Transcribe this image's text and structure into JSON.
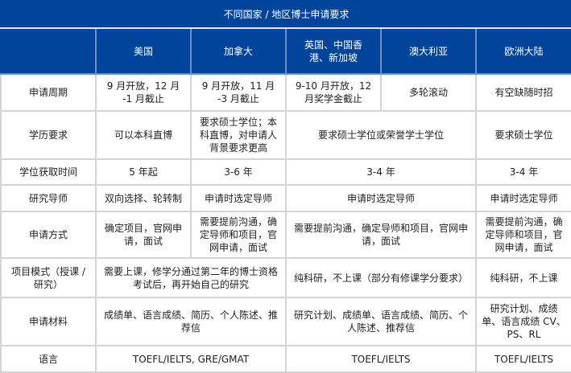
{
  "title": "不同国家 / 地区博士申请要求",
  "columns": [
    "",
    "美国",
    "加拿大",
    "英国、中国香港、新加坡",
    "澳大利亚",
    "欧洲大陆"
  ],
  "colors": {
    "header_bg": "#00449b",
    "border": "#d4d4d4"
  },
  "rows": [
    {
      "label": "申请周期",
      "cells": [
        "9 月开放，12 月 -1 月截止",
        "9 月开放，11 月 -3 月截止",
        "9-10 月开放，12 月奖学金截止",
        "多轮滚动",
        "有空缺随时招"
      ]
    },
    {
      "label": "学历要求",
      "cells": [
        "可以本科直博",
        "要求硕士学位；本科直博，对申请人背景要求更高",
        "要求硕士学位或荣誉学士学位",
        "要求硕士学位"
      ]
    },
    {
      "label": "学位获取时间",
      "cells": [
        "5 年起",
        "3-6 年",
        "3-4 年",
        "3-4 年"
      ]
    },
    {
      "label": "研究导师",
      "cells": [
        "双向选择、轮转制",
        "申请时选定导师",
        "申请时选定导师",
        "申请时选定导师"
      ]
    },
    {
      "label": "申请方式",
      "cells": [
        "确定项目，官网申请，面试",
        "需要提前沟通，确定导师和项目，官网申请，面试",
        "需要提前沟通，确定导师和项目，官网申请，面试",
        "需要提前沟通，确定导师和项目，官网申请，面试"
      ]
    },
    {
      "label": "项目模式（授课 / 研究）",
      "cells": [
        "需要上课，修学分通过第二年的博士资格考试后，再开始自己的研究",
        "纯科研，不上课（部分有修课学分要求）",
        "纯科研，不上课"
      ]
    },
    {
      "label": "申请材料",
      "cells": [
        "成绩单、语言成绩、简历、个人陈述、推荐信",
        "研究计划、成绩单、语言成绩、简历、个人陈述、推荐信",
        "研究计划、成绩单、语言成绩 CV、PS、RL"
      ]
    },
    {
      "label": "语言",
      "cells": [
        "TOEFL/IELTS, GRE/GMAT",
        "TOEFL/IELTS",
        "TOEFL/IELTS"
      ]
    }
  ]
}
